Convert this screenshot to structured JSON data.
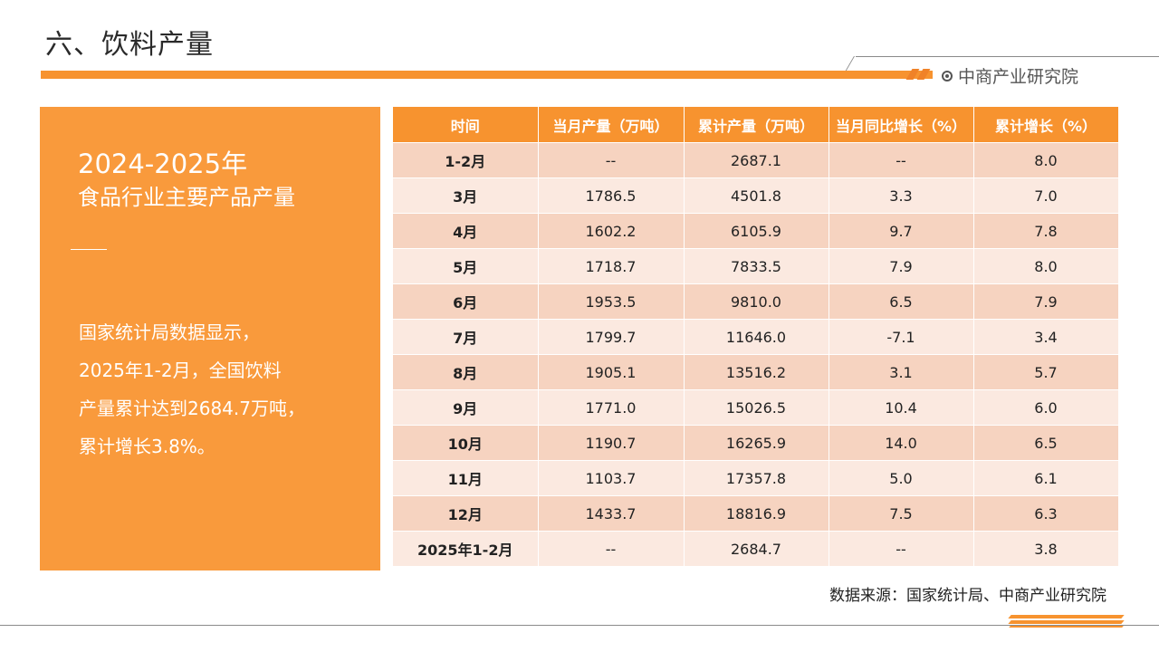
{
  "header": {
    "title": "六、饮料产量",
    "brand": "中商产业研究院"
  },
  "panel": {
    "year": "2024-2025年",
    "subtitle": "食品行业主要产品产量",
    "body_lines": [
      "国家统计局数据显示，",
      "2025年1-2月，全国饮料",
      "产量累计达到2684.7万吨，",
      "累计增长3.8%。"
    ]
  },
  "table": {
    "headers": [
      "时间",
      "当月产量（万吨）",
      "累计产量（万吨）",
      "当月同比增长（%）",
      "累计增长（%）"
    ],
    "rows": [
      [
        "1-2月",
        "--",
        "2687.1",
        "--",
        "8.0"
      ],
      [
        "3月",
        "1786.5",
        "4501.8",
        "3.3",
        "7.0"
      ],
      [
        "4月",
        "1602.2",
        "6105.9",
        "9.7",
        "7.8"
      ],
      [
        "5月",
        "1718.7",
        "7833.5",
        "7.9",
        "8.0"
      ],
      [
        "6月",
        "1953.5",
        "9810.0",
        "6.5",
        "7.9"
      ],
      [
        "7月",
        "1799.7",
        "11646.0",
        "-7.1",
        "3.4"
      ],
      [
        "8月",
        "1905.1",
        "13516.2",
        "3.1",
        "5.7"
      ],
      [
        "9月",
        "1771.0",
        "15026.5",
        "10.4",
        "6.0"
      ],
      [
        "10月",
        "1190.7",
        "16265.9",
        "14.0",
        "6.5"
      ],
      [
        "11月",
        "1103.7",
        "17357.8",
        "5.0",
        "6.1"
      ],
      [
        "12月",
        "1433.7",
        "18816.9",
        "7.5",
        "6.3"
      ],
      [
        "2025年1-2月",
        "--",
        "2684.7",
        "--",
        "3.8"
      ]
    ]
  },
  "footer": {
    "source": "数据来源：国家统计局、中商产业研究院"
  },
  "colors": {
    "accent": "#f7932f",
    "panel": "#f99a3c",
    "row_odd": "#f6d3c0",
    "row_even": "#fbe9e0"
  }
}
